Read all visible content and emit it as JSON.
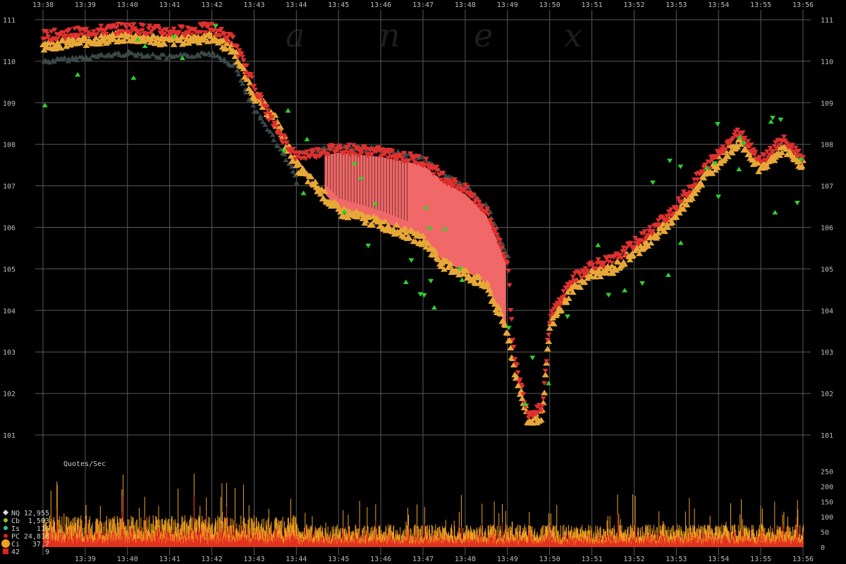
{
  "watermark": [
    "a",
    "n",
    "e",
    "x"
  ],
  "chart_data": [
    {
      "type": "scatter",
      "title": "",
      "x_ticks": [
        "13:38",
        "13:39",
        "13:40",
        "13:41",
        "13:42",
        "13:43",
        "13:44",
        "13:45",
        "13:46",
        "13:47",
        "13:48",
        "13:49",
        "13:50",
        "13:51",
        "13:52",
        "13:53",
        "13:54",
        "13:55",
        "13:56"
      ],
      "y_ticks": [
        101,
        102,
        103,
        104,
        105,
        106,
        107,
        108,
        109,
        110,
        111
      ],
      "xlim": [
        "13:38",
        "13:56"
      ],
      "ylim": [
        100.5,
        111.1
      ],
      "grid": true,
      "colors": {
        "best_bid": "#e8a838",
        "best_offer": "#e03030",
        "crossed_fill": "#f06868",
        "depth": "#3a4848",
        "exchange_quotes": "#30d030"
      },
      "series_price": {
        "time": [
          "13:38",
          "13:39",
          "13:40",
          "13:41",
          "13:42",
          "13:42:30",
          "13:43",
          "13:43:30",
          "13:44",
          "13:45",
          "13:46",
          "13:47",
          "13:47:30",
          "13:48",
          "13:48:30",
          "13:49",
          "13:49:10",
          "13:49:30",
          "13:49:50",
          "13:50",
          "13:50:30",
          "13:51",
          "13:51:30",
          "13:52",
          "13:52:30",
          "13:53",
          "13:53:30",
          "13:54",
          "13:54:30",
          "13:55",
          "13:55:30",
          "13:56"
        ],
        "bid": [
          110.4,
          110.5,
          110.6,
          110.5,
          110.6,
          110.3,
          109.2,
          108.6,
          107.5,
          106.4,
          106.1,
          105.7,
          105.1,
          104.9,
          104.6,
          103.5,
          102.6,
          101.3,
          101.5,
          103.6,
          104.5,
          104.9,
          105.0,
          105.4,
          105.8,
          106.3,
          107.0,
          107.6,
          108.1,
          107.4,
          107.9,
          107.5
        ],
        "offer": [
          110.6,
          110.7,
          110.8,
          110.7,
          110.8,
          110.5,
          109.4,
          108.4,
          107.7,
          107.9,
          107.8,
          107.6,
          107.2,
          106.9,
          106.4,
          105.2,
          102.8,
          101.5,
          101.7,
          103.8,
          104.7,
          105.1,
          105.2,
          105.6,
          106.0,
          106.5,
          107.2,
          107.8,
          108.3,
          107.6,
          108.1,
          107.7
        ]
      }
    },
    {
      "type": "bar",
      "title": "Quotes/Sec",
      "y_ticks": [
        0,
        50,
        100,
        150,
        200,
        250
      ],
      "ylim": [
        0,
        260
      ],
      "x_ticks": [
        "13:39",
        "13:40",
        "13:41",
        "13:42",
        "13:43",
        "13:44",
        "13:45",
        "13:46",
        "13:47",
        "13:48",
        "13:49",
        "13:50",
        "13:51",
        "13:52",
        "13:53",
        "13:54",
        "13:55",
        "13:56"
      ],
      "legend": [
        {
          "label": "NQ",
          "count": "12,955",
          "color": "#dddddd",
          "shape": "diamond"
        },
        {
          "label": "Cb",
          "count": "1,503",
          "color": "#90c030",
          "shape": "dot"
        },
        {
          "label": "Is",
          "count": "116",
          "color": "#30c0a0",
          "shape": "dot"
        },
        {
          "label": "PC",
          "count": "24,816",
          "color": "#e02020",
          "shape": "dot"
        },
        {
          "label": "Ci",
          "count": "37,7",
          "color": "#f0a020",
          "shape": "big-dot"
        },
        {
          "label": "42",
          "count": "9",
          "color": "#e02020",
          "shape": "square"
        }
      ],
      "colors": {
        "bar_primary": "#f0a020",
        "bar_secondary": "#e02020",
        "base": "#d0d0d0"
      }
    }
  ]
}
